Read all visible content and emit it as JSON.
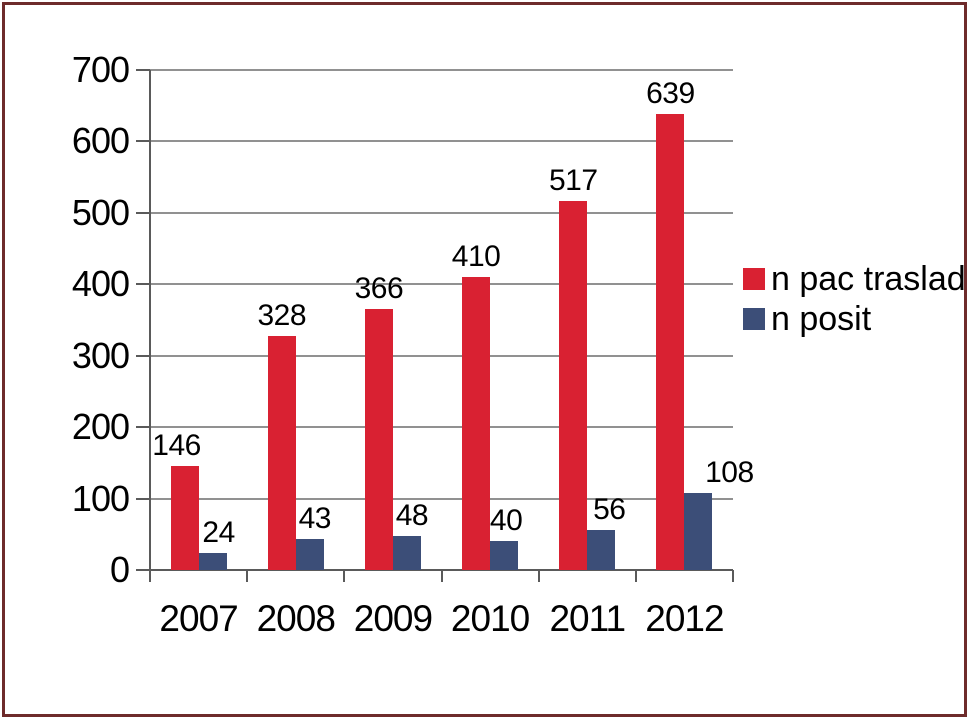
{
  "chart_data": {
    "type": "bar",
    "categories": [
      "2007",
      "2008",
      "2009",
      "2010",
      "2011",
      "2012"
    ],
    "series": [
      {
        "name": "n pac traslad",
        "color": "#d92132",
        "values": [
          146,
          328,
          366,
          410,
          517,
          639
        ]
      },
      {
        "name": "n posit",
        "color": "#3c4e78",
        "values": [
          24,
          43,
          48,
          40,
          56,
          108
        ]
      }
    ],
    "title": "",
    "xlabel": "",
    "ylabel": "",
    "ylim": [
      0,
      700
    ],
    "ytick_step": 100,
    "grid": true,
    "legend_position": "right",
    "bar_labels_shown": true
  },
  "y_ticks": [
    "0",
    "100",
    "200",
    "300",
    "400",
    "500",
    "600",
    "700"
  ],
  "colors": {
    "background": "#ffffff",
    "frame_border": "#6e2b2b",
    "gridline": "#919191",
    "axis": "#5a5a5a",
    "text": "#000000"
  }
}
